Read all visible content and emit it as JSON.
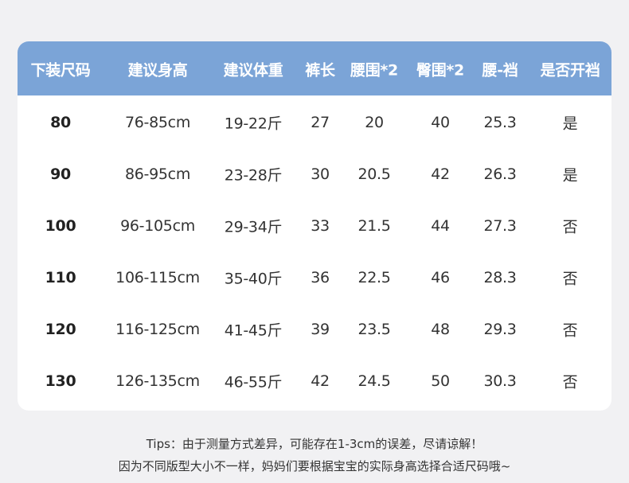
{
  "table": {
    "headers": [
      "下装尺码",
      "建议身高",
      "建议体重",
      "裤长",
      "腰围*2",
      "臀围*2",
      "腰-裆",
      "是否开裆"
    ],
    "rows": [
      [
        "80",
        "76-85cm",
        "19-22斤",
        "27",
        "20",
        "40",
        "25.3",
        "是"
      ],
      [
        "90",
        "86-95cm",
        "23-28斤",
        "30",
        "20.5",
        "42",
        "26.3",
        "是"
      ],
      [
        "100",
        "96-105cm",
        "29-34斤",
        "33",
        "21.5",
        "44",
        "27.3",
        "否"
      ],
      [
        "110",
        "106-115cm",
        "35-40斤",
        "36",
        "22.5",
        "46",
        "28.3",
        "否"
      ],
      [
        "120",
        "116-125cm",
        "41-45斤",
        "39",
        "23.5",
        "48",
        "29.3",
        "否"
      ],
      [
        "130",
        "126-135cm",
        "46-55斤",
        "42",
        "24.5",
        "50",
        "30.3",
        "否"
      ]
    ]
  },
  "tips": [
    "Tips：由于测量方式差异，可能存在1-3cm的误差，尽请谅解！",
    "因为不同版型大小不一样，妈妈们要根据宝宝的实际身高选择合适尺码哦~"
  ]
}
